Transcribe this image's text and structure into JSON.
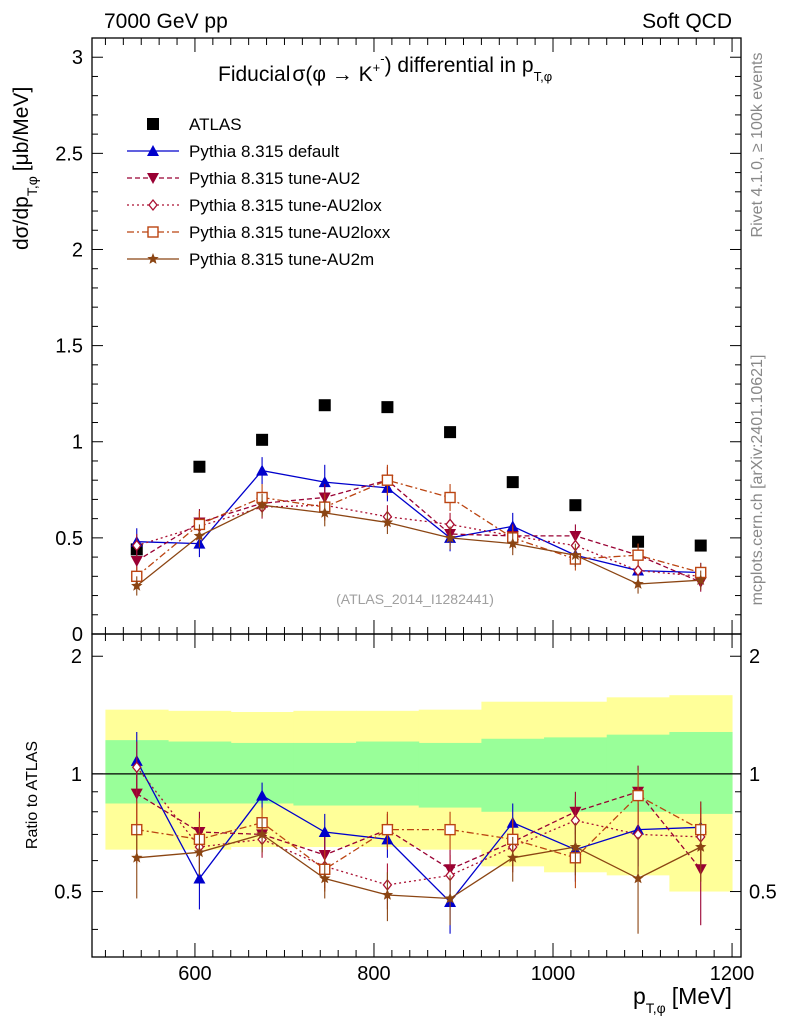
{
  "header": {
    "left": "7000 GeV pp",
    "right": "Soft QCD"
  },
  "side_labels": {
    "rivet": "Rivet 4.1.0, ≥ 100k events",
    "mcplots": "mcplots.cern.ch [arXiv:2401.10621]"
  },
  "colors": {
    "atlas": "#000000",
    "default": "#0000cc",
    "au2": "#990033",
    "au2lox": "#aa1133",
    "au2loxx": "#bb4411",
    "au2m": "#8b4513",
    "band_inner": "#99ff99",
    "band_outer": "#ffff99"
  },
  "chart_data": [
    {
      "type": "scatter",
      "panel": "main",
      "title": {
        "prefix": "Fiducial",
        "formula": "σ(φ →  K",
        "k_plus": "+",
        "k": "K",
        "k_minus": "-",
        "suffix": ") differential in p",
        "sub": "T,φ"
      },
      "ylabel": {
        "main": "dσ/dp",
        "sub": "T,φ",
        "unit": "[μb/MeV]"
      },
      "xlim": [
        485,
        1210
      ],
      "ylim": [
        0,
        3.1
      ],
      "yticks": [
        "0",
        "0.5",
        "1",
        "1.5",
        "2",
        "2.5",
        "3"
      ],
      "ytick_values": [
        0,
        0.5,
        1,
        1.5,
        2,
        2.5,
        3
      ],
      "watermark": "(ATLAS_2014_I1282441)",
      "x": [
        535,
        605,
        675,
        745,
        815,
        885,
        955,
        1025,
        1095,
        1165
      ],
      "series": [
        {
          "name": "ATLAS",
          "key": "atlas",
          "marker": "square",
          "line": "none",
          "values": [
            0.44,
            0.87,
            1.01,
            1.19,
            1.18,
            1.05,
            0.79,
            0.67,
            0.48,
            0.46
          ],
          "errors": [
            0.02,
            0.02,
            0.02,
            0.02,
            0.02,
            0.02,
            0.02,
            0.02,
            0.02,
            0.02
          ]
        },
        {
          "name": "Pythia 8.315 default",
          "key": "default",
          "marker": "triangle-up",
          "line": "solid",
          "values": [
            0.48,
            0.47,
            0.85,
            0.79,
            0.76,
            0.5,
            0.56,
            0.41,
            0.33,
            0.32
          ],
          "errors": [
            0.07,
            0.07,
            0.07,
            0.09,
            0.07,
            0.07,
            0.07,
            0.06,
            0.06,
            0.05
          ]
        },
        {
          "name": "Pythia 8.315 tune-AU2",
          "key": "au2",
          "marker": "triangle-down",
          "line": "dashed",
          "values": [
            0.38,
            0.58,
            0.68,
            0.71,
            0.8,
            0.52,
            0.51,
            0.51,
            0.41,
            0.27
          ],
          "errors": [
            0.06,
            0.07,
            0.06,
            0.07,
            0.07,
            0.06,
            0.06,
            0.06,
            0.06,
            0.05
          ]
        },
        {
          "name": "Pythia 8.315 tune-AU2lox",
          "key": "au2lox",
          "marker": "diamond-open",
          "line": "dotted",
          "values": [
            0.46,
            0.56,
            0.66,
            0.67,
            0.61,
            0.57,
            0.51,
            0.46,
            0.33,
            0.3
          ],
          "errors": [
            0.06,
            0.07,
            0.06,
            0.07,
            0.06,
            0.06,
            0.06,
            0.06,
            0.05,
            0.05
          ]
        },
        {
          "name": "Pythia 8.315 tune-AU2loxx",
          "key": "au2loxx",
          "marker": "square-open",
          "line": "dashdot",
          "values": [
            0.3,
            0.57,
            0.71,
            0.66,
            0.8,
            0.71,
            0.5,
            0.39,
            0.41,
            0.32
          ],
          "errors": [
            0.05,
            0.07,
            0.07,
            0.07,
            0.08,
            0.07,
            0.06,
            0.06,
            0.06,
            0.05
          ]
        },
        {
          "name": "Pythia 8.315 tune-AU2m",
          "key": "au2m",
          "marker": "star",
          "line": "solid",
          "values": [
            0.25,
            0.51,
            0.67,
            0.63,
            0.58,
            0.5,
            0.47,
            0.41,
            0.26,
            0.28
          ],
          "errors": [
            0.05,
            0.06,
            0.06,
            0.07,
            0.06,
            0.06,
            0.06,
            0.06,
            0.05,
            0.05
          ]
        }
      ]
    },
    {
      "type": "scatter",
      "panel": "ratio",
      "ylabel": "Ratio to ATLAS",
      "xlabel": {
        "main": "p",
        "sub": "T,φ",
        "unit": "[MeV]"
      },
      "xlim": [
        485,
        1210
      ],
      "ylim": [
        0.34,
        2.28
      ],
      "xticks": [
        "600",
        "800",
        "1000",
        "1200"
      ],
      "xtick_values": [
        600,
        800,
        1000,
        1200
      ],
      "yticks": [
        "0.5",
        "1",
        "2"
      ],
      "ytick_values": [
        0.5,
        1,
        2
      ],
      "bands": {
        "edges": [
          500,
          570,
          640,
          710,
          780,
          850,
          920,
          990,
          1060,
          1130,
          1200
        ],
        "inner": [
          [
            0.84,
            1.22
          ],
          [
            0.84,
            1.21
          ],
          [
            0.84,
            1.2
          ],
          [
            0.83,
            1.2
          ],
          [
            0.83,
            1.21
          ],
          [
            0.82,
            1.2
          ],
          [
            0.8,
            1.23
          ],
          [
            0.8,
            1.24
          ],
          [
            0.8,
            1.26
          ],
          [
            0.79,
            1.28
          ]
        ],
        "outer": [
          [
            0.64,
            1.46
          ],
          [
            0.64,
            1.45
          ],
          [
            0.65,
            1.44
          ],
          [
            0.65,
            1.45
          ],
          [
            0.65,
            1.45
          ],
          [
            0.64,
            1.46
          ],
          [
            0.58,
            1.53
          ],
          [
            0.56,
            1.53
          ],
          [
            0.55,
            1.57
          ],
          [
            0.5,
            1.59
          ]
        ]
      },
      "x": [
        535,
        605,
        675,
        745,
        815,
        885,
        955,
        1025,
        1095,
        1165
      ],
      "series": [
        {
          "name": "Pythia 8.315 default",
          "key": "default",
          "marker": "triangle-up",
          "line": "solid",
          "values": [
            1.08,
            0.54,
            0.88,
            0.71,
            0.68,
            0.47,
            0.75,
            0.64,
            0.72,
            0.73
          ],
          "errors": [
            0.2,
            0.09,
            0.07,
            0.08,
            0.07,
            0.08,
            0.09,
            0.11,
            0.14,
            0.12
          ]
        },
        {
          "name": "Pythia 8.315 tune-AU2",
          "key": "au2",
          "marker": "triangle-down",
          "line": "dashed",
          "values": [
            0.89,
            0.71,
            0.7,
            0.62,
            0.72,
            0.57,
            0.67,
            0.8,
            0.9,
            0.57
          ],
          "errors": [
            0.15,
            0.09,
            0.07,
            0.07,
            0.07,
            0.07,
            0.09,
            0.1,
            0.15,
            0.16
          ]
        },
        {
          "name": "Pythia 8.315 tune-AU2lox",
          "key": "au2lox",
          "marker": "diamond-open",
          "line": "dotted",
          "values": [
            1.04,
            0.65,
            0.68,
            0.58,
            0.52,
            0.55,
            0.65,
            0.76,
            0.7,
            0.69
          ],
          "errors": [
            0.17,
            0.09,
            0.07,
            0.07,
            0.07,
            0.07,
            0.09,
            0.11,
            0.14,
            0.13
          ]
        },
        {
          "name": "Pythia 8.315 tune-AU2loxx",
          "key": "au2loxx",
          "marker": "square-open",
          "line": "dashdot",
          "values": [
            0.72,
            0.68,
            0.75,
            0.57,
            0.72,
            0.72,
            0.68,
            0.61,
            0.88,
            0.72
          ],
          "errors": [
            0.13,
            0.09,
            0.07,
            0.07,
            0.08,
            0.08,
            0.09,
            0.1,
            0.14,
            0.13
          ]
        },
        {
          "name": "Pythia 8.315 tune-AU2m",
          "key": "au2m",
          "marker": "star",
          "line": "solid",
          "values": [
            0.61,
            0.63,
            0.7,
            0.54,
            0.49,
            0.48,
            0.61,
            0.65,
            0.54,
            0.65
          ],
          "errors": [
            0.13,
            0.08,
            0.07,
            0.06,
            0.07,
            0.07,
            0.08,
            0.1,
            0.15,
            0.12
          ]
        }
      ]
    }
  ]
}
